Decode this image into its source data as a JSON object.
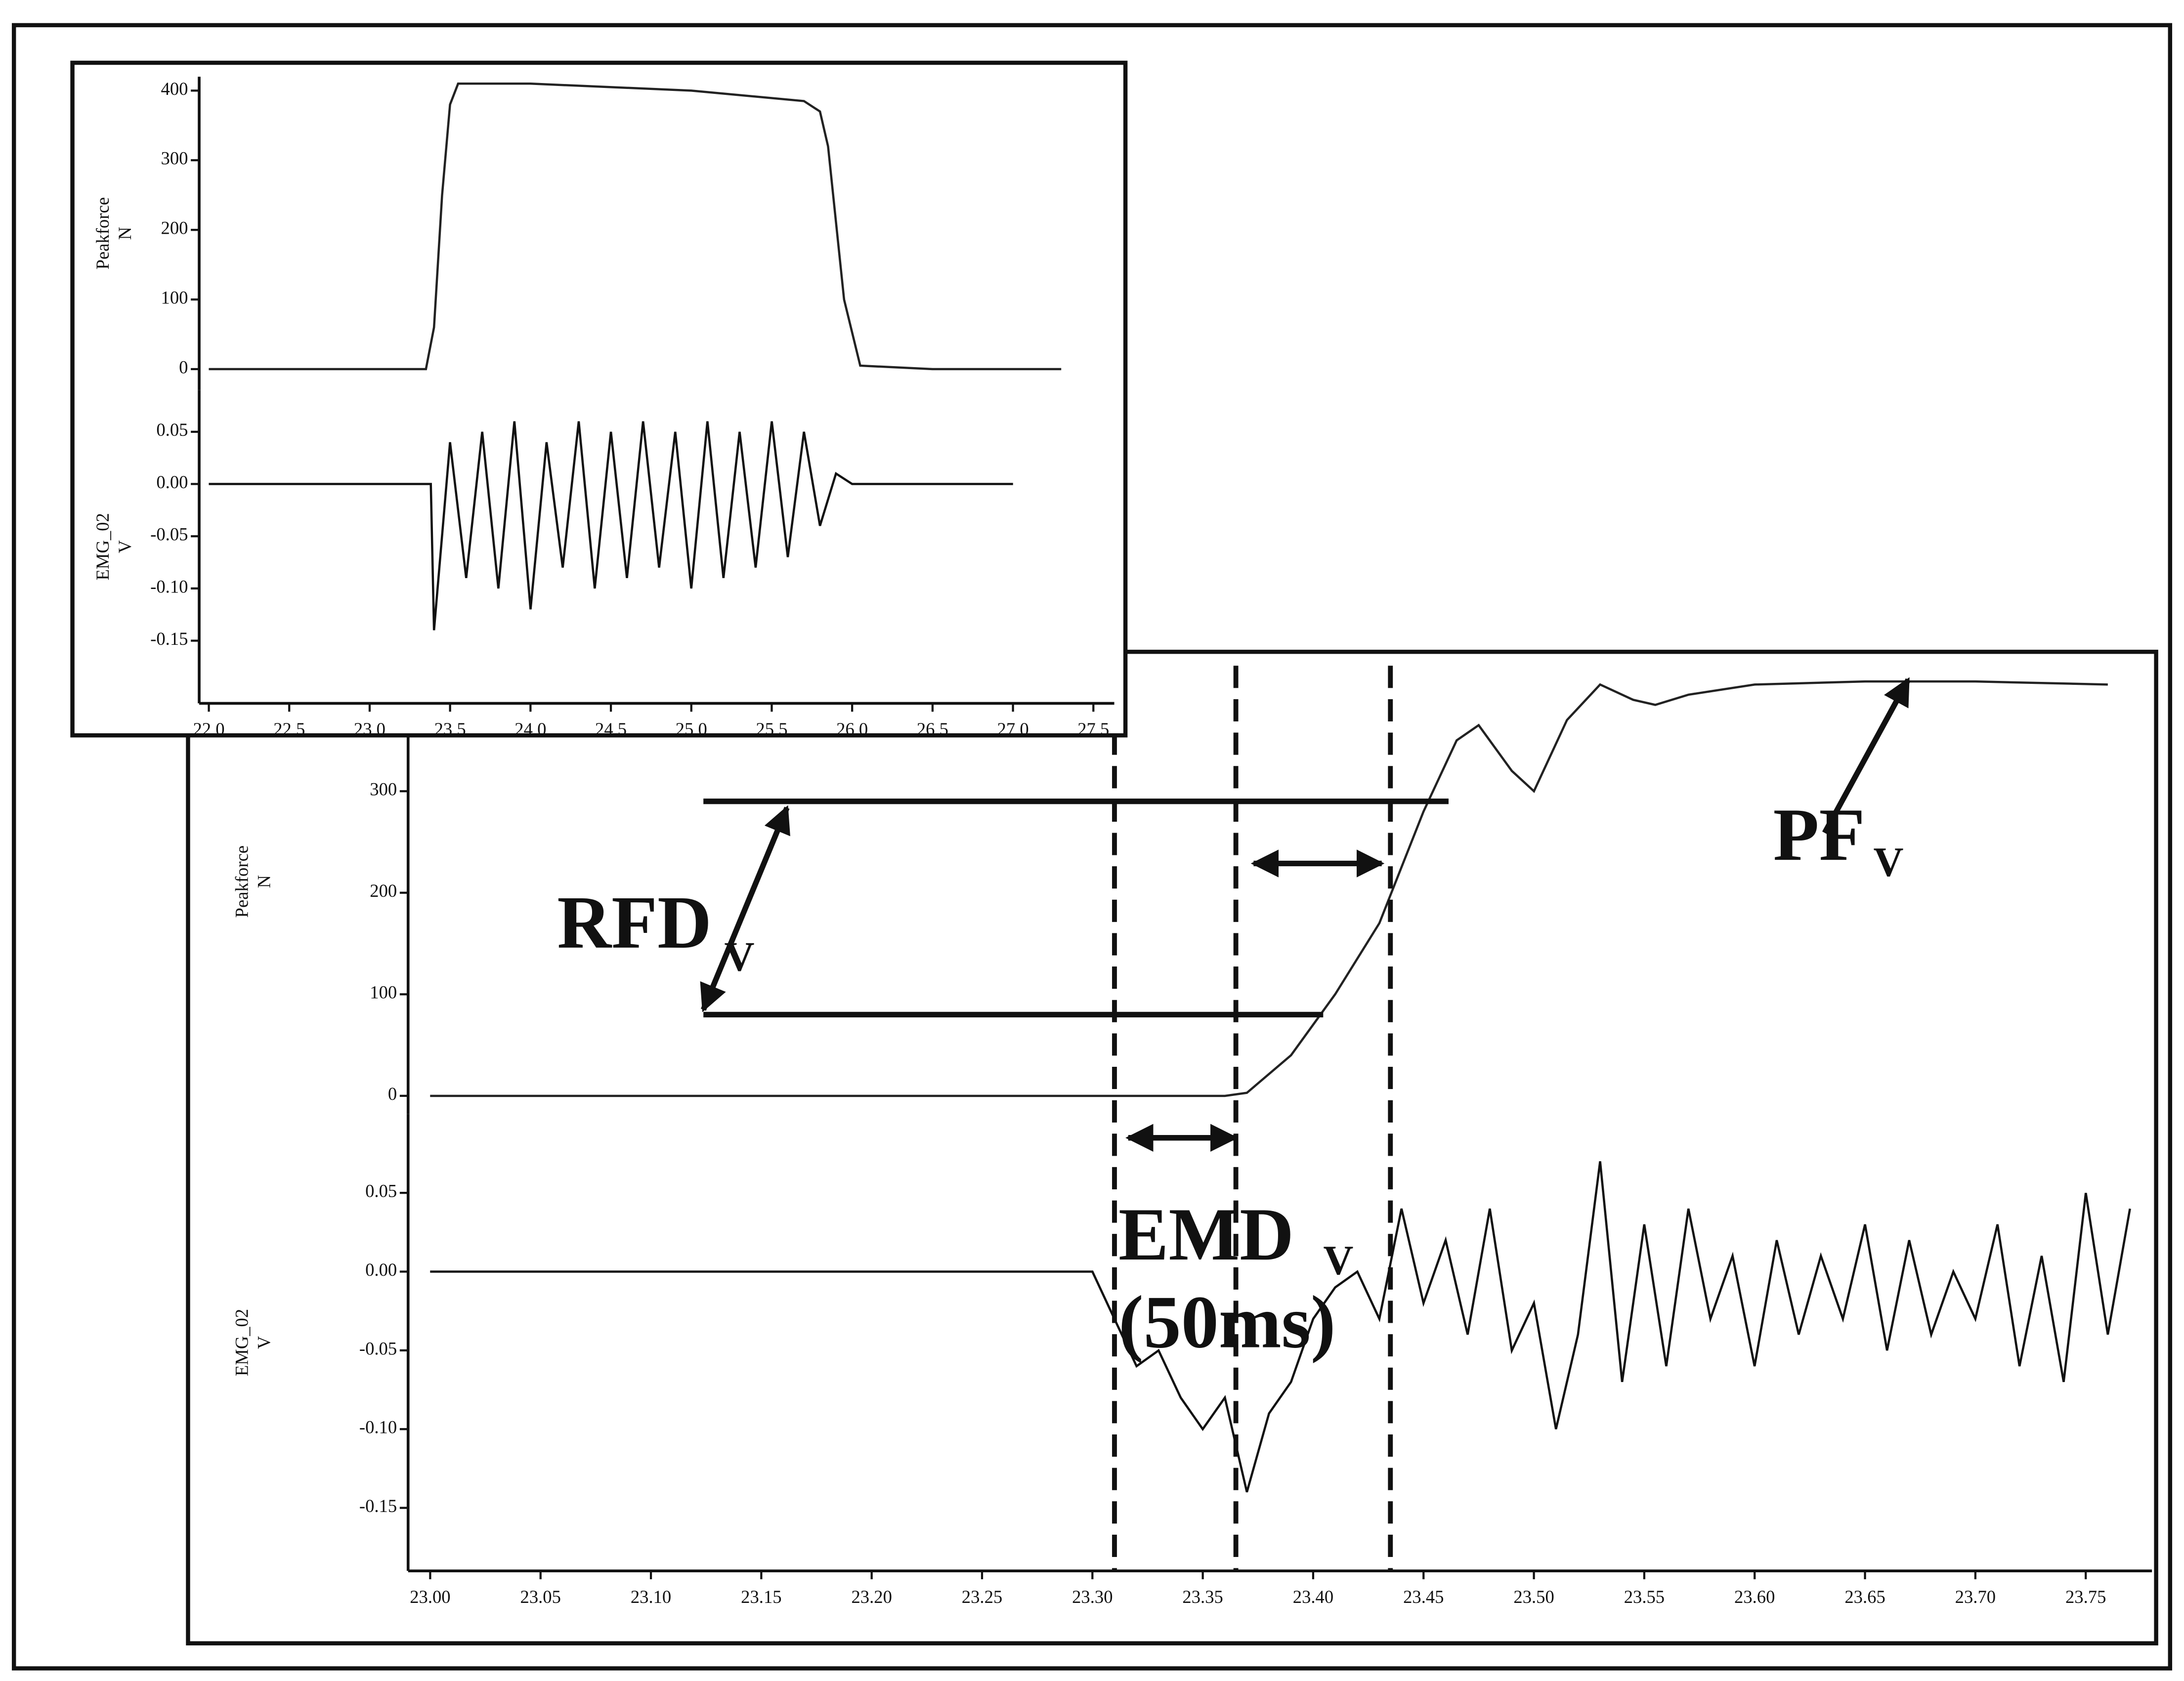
{
  "chart_data": [
    {
      "type": "line",
      "ylabel": "Peakforce",
      "yunit": "N",
      "color": "#222",
      "x": [
        22.0,
        23.35,
        23.4,
        23.45,
        23.5,
        23.55,
        24.0,
        25.0,
        25.7,
        25.8,
        25.85,
        25.95,
        26.05,
        26.5,
        27.3
      ],
      "values": [
        0,
        0,
        60,
        250,
        380,
        410,
        410,
        400,
        385,
        370,
        320,
        100,
        5,
        0,
        0
      ],
      "xlim": [
        21.94,
        27.63
      ],
      "ylim": [
        -30,
        420
      ],
      "yticks": [
        0,
        100,
        200,
        300,
        400
      ]
    },
    {
      "type": "line",
      "ylabel": "EMG_02",
      "yunit": "V",
      "color": "#111",
      "x": [
        22.0,
        23.38,
        23.4,
        23.5,
        23.6,
        23.7,
        23.8,
        23.9,
        24.0,
        24.1,
        24.2,
        24.3,
        24.4,
        24.5,
        24.6,
        24.7,
        24.8,
        24.9,
        25.0,
        25.1,
        25.2,
        25.3,
        25.4,
        25.5,
        25.6,
        25.7,
        25.8,
        25.9,
        26.0,
        27.0
      ],
      "values": [
        0,
        0,
        -0.14,
        0.04,
        -0.09,
        0.05,
        -0.1,
        0.06,
        -0.12,
        0.04,
        -0.08,
        0.06,
        -0.1,
        0.05,
        -0.09,
        0.06,
        -0.08,
        0.05,
        -0.1,
        0.06,
        -0.09,
        0.05,
        -0.08,
        0.06,
        -0.07,
        0.05,
        -0.04,
        0.01,
        0,
        0
      ],
      "xlim": [
        21.94,
        27.63
      ],
      "ylim": [
        -0.21,
        0.09
      ],
      "yticks": [
        0.05,
        {
          "value": 0,
          "label": "0.00"
        },
        -0.05,
        {
          "value": -0.1,
          "label": "-0.10"
        },
        -0.15
      ],
      "xticks": [
        {
          "value": 22.0,
          "label": "22.0"
        },
        {
          "value": 22.5,
          "label": "22.5"
        },
        {
          "value": 23.0,
          "label": "23.0"
        },
        {
          "value": 23.5,
          "label": "23.5"
        },
        {
          "value": 24.0,
          "label": "24.0"
        },
        {
          "value": 24.5,
          "label": "24.5"
        },
        {
          "value": 25.0,
          "label": "25.0"
        },
        {
          "value": 25.5,
          "label": "25.5"
        },
        {
          "value": 26.0,
          "label": "26.0"
        },
        {
          "value": 26.5,
          "label": "26.5"
        },
        {
          "value": 27.0,
          "label": "27.0"
        },
        {
          "value": 27.5,
          "label": "27.5"
        }
      ]
    },
    {
      "type": "line",
      "ylabel": "Peakforce",
      "yunit": "N",
      "color": "#222",
      "x": [
        23.0,
        23.36,
        23.37,
        23.39,
        23.41,
        23.43,
        23.45,
        23.465,
        23.475,
        23.49,
        23.5,
        23.515,
        23.53,
        23.545,
        23.555,
        23.57,
        23.6,
        23.65,
        23.7,
        23.76
      ],
      "values": [
        0,
        0,
        3,
        40,
        100,
        170,
        280,
        350,
        365,
        320,
        300,
        370,
        405,
        390,
        385,
        395,
        405,
        408,
        408,
        405
      ],
      "xlim": [
        22.99,
        23.78
      ],
      "ylim": [
        -18,
        440
      ],
      "yticks": [
        0,
        100,
        200,
        300
      ],
      "hlines": [
        290,
        80
      ],
      "annotations": [
        "RFD",
        "V",
        "PF",
        "V"
      ]
    },
    {
      "type": "line",
      "ylabel": "EMG_02",
      "yunit": "V",
      "color": "#111",
      "x": [
        23.0,
        23.3,
        23.31,
        23.32,
        23.33,
        23.34,
        23.35,
        23.36,
        23.37,
        23.38,
        23.39,
        23.4,
        23.41,
        23.42,
        23.43,
        23.44,
        23.45,
        23.46,
        23.47,
        23.48,
        23.49,
        23.5,
        23.51,
        23.52,
        23.53,
        23.54,
        23.55,
        23.56,
        23.57,
        23.58,
        23.59,
        23.6,
        23.61,
        23.62,
        23.63,
        23.64,
        23.65,
        23.66,
        23.67,
        23.68,
        23.69,
        23.7,
        23.71,
        23.72,
        23.73,
        23.74,
        23.75,
        23.76,
        23.77
      ],
      "values": [
        0,
        0,
        -0.03,
        -0.06,
        -0.05,
        -0.08,
        -0.1,
        -0.08,
        -0.14,
        -0.09,
        -0.07,
        -0.03,
        -0.01,
        0,
        -0.03,
        0.04,
        -0.02,
        0.02,
        -0.04,
        0.04,
        -0.05,
        -0.02,
        -0.1,
        -0.04,
        0.07,
        -0.07,
        0.03,
        -0.06,
        0.04,
        -0.03,
        0.01,
        -0.06,
        0.02,
        -0.04,
        0.01,
        -0.03,
        0.03,
        -0.05,
        0.02,
        -0.04,
        0,
        -0.03,
        0.03,
        -0.06,
        0.01,
        -0.07,
        0.05,
        -0.04,
        0.04
      ],
      "xlim": [
        22.99,
        23.78
      ],
      "ylim": [
        -0.19,
        0.1
      ],
      "yticks": [
        0.05,
        {
          "value": 0,
          "label": "0.00"
        },
        -0.05,
        {
          "value": -0.1,
          "label": "-0.10"
        },
        -0.15
      ],
      "xticks": [
        {
          "value": 23.0,
          "label": "23.00"
        },
        {
          "value": 23.05,
          "label": "23.05"
        },
        {
          "value": 23.1,
          "label": "23.10"
        },
        {
          "value": 23.15,
          "label": "23.15"
        },
        {
          "value": 23.2,
          "label": "23.20"
        },
        {
          "value": 23.25,
          "label": "23.25"
        },
        {
          "value": 23.3,
          "label": "23.30"
        },
        {
          "value": 23.35,
          "label": "23.35"
        },
        {
          "value": 23.4,
          "label": "23.40"
        },
        {
          "value": 23.45,
          "label": "23.45"
        },
        {
          "value": 23.5,
          "label": "23.50"
        },
        {
          "value": 23.55,
          "label": "23.55"
        },
        {
          "value": 23.6,
          "label": "23.60"
        },
        {
          "value": 23.65,
          "label": "23.65"
        },
        {
          "value": 23.7,
          "label": "23.70"
        },
        {
          "value": 23.75,
          "label": "23.75"
        }
      ],
      "vlines": [
        23.31,
        23.365,
        23.435
      ],
      "annotations": [
        "EMD",
        "V",
        "(50ms)"
      ]
    }
  ]
}
